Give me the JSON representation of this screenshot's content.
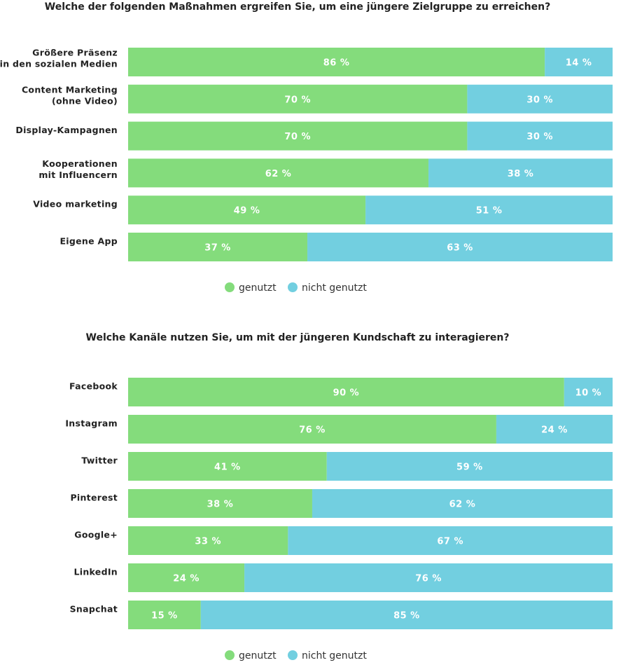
{
  "colors": {
    "used": "#84dc7c",
    "unused": "#72cfe0"
  },
  "chart_data": [
    {
      "type": "bar",
      "orientation": "horizontal",
      "stacked": true,
      "title": "Welche der folgenden Maßnahmen ergreifen Sie, um eine jüngere Zielgruppe zu erreichen?",
      "categories": [
        [
          "Größere Präsenz",
          "in den sozialen Medien"
        ],
        [
          "Content Marketing",
          "(ohne Video)"
        ],
        [
          "Display-Kampagnen"
        ],
        [
          "Kooperationen",
          "mit Influencern"
        ],
        [
          "Video marketing"
        ],
        [
          "Eigene App"
        ]
      ],
      "series": [
        {
          "name": "genutzt",
          "values": [
            86,
            70,
            70,
            62,
            49,
            37
          ]
        },
        {
          "name": "nicht genutzt",
          "values": [
            14,
            30,
            30,
            38,
            51,
            63
          ]
        }
      ],
      "value_suffix": " %",
      "xlim": [
        0,
        100
      ],
      "legend": "bottom-center",
      "grid": false
    },
    {
      "type": "bar",
      "orientation": "horizontal",
      "stacked": true,
      "title": "Welche Kanäle nutzen Sie, um mit der jüngeren Kundschaft zu interagieren?",
      "categories": [
        [
          "Facebook"
        ],
        [
          "Instagram"
        ],
        [
          "Twitter"
        ],
        [
          "Pinterest"
        ],
        [
          "Google+"
        ],
        [
          "LinkedIn"
        ],
        [
          "Snapchat"
        ]
      ],
      "series": [
        {
          "name": "genutzt",
          "values": [
            90,
            76,
            41,
            38,
            33,
            24,
            15
          ]
        },
        {
          "name": "nicht genutzt",
          "values": [
            10,
            24,
            59,
            62,
            67,
            76,
            85
          ]
        }
      ],
      "value_suffix": " %",
      "xlim": [
        0,
        100
      ],
      "legend": "bottom-center",
      "grid": false
    }
  ]
}
